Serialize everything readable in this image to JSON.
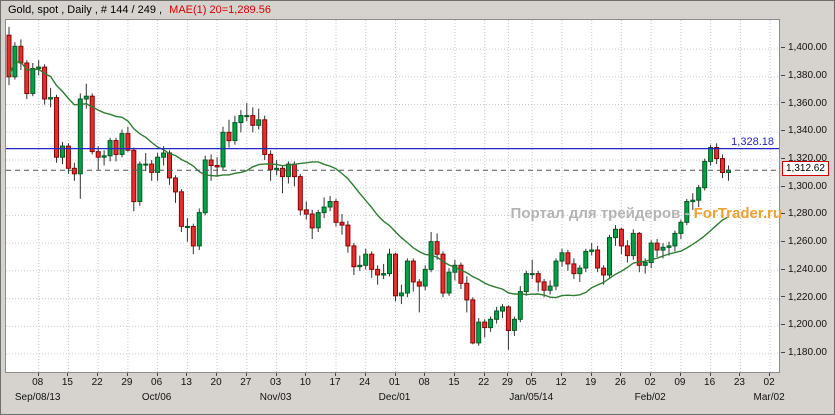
{
  "window": {
    "title_main": "Gold, spot , Daily , # 144 / 249 ,",
    "title_indicator": "MAE(1) 20=1,289.56"
  },
  "watermark": {
    "text_gray": "Портал для трейдеров",
    "separator": " - ",
    "text_orange": "ForTrader.ru"
  },
  "colors": {
    "up": "#00a14b",
    "down": "#e03030",
    "ma": "#2e7d32",
    "blue_line": "#2626c4",
    "grid": "#c9c9c9",
    "title_indicator": "#d40000",
    "watermark_gray": "#b4b4b4",
    "watermark_orange": "#f0a030"
  },
  "chart_data": {
    "type": "candlestick",
    "instrument": "Gold, spot",
    "timeframe": "Daily",
    "bars_shown": "144 / 249",
    "indicator": {
      "name": "MAE",
      "applied": 1,
      "period": 20,
      "value": 1289.56,
      "label": "MAE(1) 20=1,289.56"
    },
    "legend_position": "top-left",
    "grid": true,
    "price_min": 1167,
    "price_max": 1421,
    "ma_period": 20,
    "total_slots": 130,
    "blue_line": {
      "value": 1328.18,
      "label": "1,328.18"
    },
    "dashed_line": {
      "value": 1312.62,
      "label": "1,312.62"
    },
    "y_ticks": [
      {
        "value": 1400,
        "label": "1,400.00"
      },
      {
        "value": 1380,
        "label": "1,380.00"
      },
      {
        "value": 1360,
        "label": "1,360.00"
      },
      {
        "value": 1340,
        "label": "1,340.00"
      },
      {
        "value": 1320,
        "label": "1,320.00"
      },
      {
        "value": 1300,
        "label": "1,300.00"
      },
      {
        "value": 1280,
        "label": "1,280.00"
      },
      {
        "value": 1260,
        "label": "1,260.00"
      },
      {
        "value": 1240,
        "label": "1,240.00"
      },
      {
        "value": 1220,
        "label": "1,220.00"
      },
      {
        "value": 1200,
        "label": "1,200.00"
      },
      {
        "value": 1180,
        "label": "1,180.00"
      }
    ],
    "x_ticks": [
      {
        "slot": 5,
        "label": "08"
      },
      {
        "slot": 10,
        "label": "15"
      },
      {
        "slot": 15,
        "label": "22"
      },
      {
        "slot": 20,
        "label": "29"
      },
      {
        "slot": 25,
        "label": "06"
      },
      {
        "slot": 30,
        "label": "13"
      },
      {
        "slot": 35,
        "label": "20"
      },
      {
        "slot": 40,
        "label": "27"
      },
      {
        "slot": 45,
        "label": "03"
      },
      {
        "slot": 50,
        "label": "10"
      },
      {
        "slot": 55,
        "label": "17"
      },
      {
        "slot": 60,
        "label": "24"
      },
      {
        "slot": 65,
        "label": "01"
      },
      {
        "slot": 70,
        "label": "08"
      },
      {
        "slot": 75,
        "label": "15"
      },
      {
        "slot": 80,
        "label": "22"
      },
      {
        "slot": 84,
        "label": "29"
      },
      {
        "slot": 88,
        "label": "05"
      },
      {
        "slot": 93,
        "label": "12"
      },
      {
        "slot": 98,
        "label": "19"
      },
      {
        "slot": 103,
        "label": "26"
      },
      {
        "slot": 108,
        "label": "02"
      },
      {
        "slot": 113,
        "label": "09"
      },
      {
        "slot": 118,
        "label": "16"
      },
      {
        "slot": 123,
        "label": "23"
      },
      {
        "slot": 128,
        "label": "02"
      }
    ],
    "month_ticks": [
      {
        "slot": 5,
        "label": "Sep/08/13"
      },
      {
        "slot": 25,
        "label": "Oct/06"
      },
      {
        "slot": 45,
        "label": "Nov/03"
      },
      {
        "slot": 65,
        "label": "Dec/01"
      },
      {
        "slot": 88,
        "label": "Jan/05/14"
      },
      {
        "slot": 108,
        "label": "Feb/02"
      },
      {
        "slot": 128,
        "label": "Mar/02"
      }
    ],
    "candles": [
      [
        1410,
        1416,
        1374,
        1380
      ],
      [
        1380,
        1405,
        1378,
        1402
      ],
      [
        1402,
        1407,
        1385,
        1390
      ],
      [
        1390,
        1392,
        1364,
        1368
      ],
      [
        1368,
        1390,
        1366,
        1386
      ],
      [
        1386,
        1392,
        1381,
        1387
      ],
      [
        1387,
        1389,
        1360,
        1364
      ],
      [
        1364,
        1372,
        1358,
        1365
      ],
      [
        1365,
        1367,
        1318,
        1322
      ],
      [
        1322,
        1333,
        1317,
        1330
      ],
      [
        1330,
        1332,
        1310,
        1314
      ],
      [
        1314,
        1318,
        1305,
        1310
      ],
      [
        1310,
        1368,
        1292,
        1364
      ],
      [
        1364,
        1375,
        1357,
        1366
      ],
      [
        1366,
        1368,
        1324,
        1326
      ],
      [
        1326,
        1330,
        1313,
        1322
      ],
      [
        1322,
        1327,
        1316,
        1323
      ],
      [
        1323,
        1336,
        1319,
        1334
      ],
      [
        1334,
        1336,
        1319,
        1324
      ],
      [
        1324,
        1342,
        1322,
        1339
      ],
      [
        1339,
        1344,
        1326,
        1327
      ],
      [
        1327,
        1329,
        1283,
        1290
      ],
      [
        1290,
        1319,
        1287,
        1317
      ],
      [
        1317,
        1325,
        1312,
        1317
      ],
      [
        1317,
        1320,
        1305,
        1311
      ],
      [
        1311,
        1325,
        1305,
        1322
      ],
      [
        1322,
        1330,
        1316,
        1325
      ],
      [
        1325,
        1327,
        1302,
        1307
      ],
      [
        1307,
        1309,
        1289,
        1297
      ],
      [
        1297,
        1299,
        1268,
        1272
      ],
      [
        1272,
        1278,
        1261,
        1272
      ],
      [
        1272,
        1274,
        1252,
        1258
      ],
      [
        1258,
        1285,
        1255,
        1282
      ],
      [
        1282,
        1323,
        1280,
        1320
      ],
      [
        1320,
        1324,
        1305,
        1316
      ],
      [
        1316,
        1322,
        1308,
        1315
      ],
      [
        1315,
        1344,
        1313,
        1340
      ],
      [
        1340,
        1349,
        1329,
        1334
      ],
      [
        1334,
        1352,
        1331,
        1347
      ],
      [
        1347,
        1356,
        1340,
        1352
      ],
      [
        1352,
        1361,
        1348,
        1352
      ],
      [
        1352,
        1358,
        1340,
        1345
      ],
      [
        1345,
        1357,
        1342,
        1349
      ],
      [
        1349,
        1352,
        1320,
        1324
      ],
      [
        1324,
        1327,
        1305,
        1313
      ],
      [
        1313,
        1320,
        1309,
        1314
      ],
      [
        1314,
        1316,
        1296,
        1308
      ],
      [
        1308,
        1319,
        1303,
        1317
      ],
      [
        1317,
        1319,
        1301,
        1308
      ],
      [
        1308,
        1310,
        1280,
        1284
      ],
      [
        1284,
        1290,
        1277,
        1281
      ],
      [
        1281,
        1284,
        1263,
        1271
      ],
      [
        1271,
        1284,
        1268,
        1282
      ],
      [
        1282,
        1293,
        1278,
        1286
      ],
      [
        1286,
        1294,
        1283,
        1290
      ],
      [
        1290,
        1292,
        1272,
        1275
      ],
      [
        1275,
        1281,
        1266,
        1273
      ],
      [
        1273,
        1276,
        1253,
        1258
      ],
      [
        1258,
        1260,
        1237,
        1243
      ],
      [
        1243,
        1251,
        1240,
        1244
      ],
      [
        1244,
        1256,
        1241,
        1252
      ],
      [
        1252,
        1254,
        1235,
        1241
      ],
      [
        1241,
        1244,
        1230,
        1237
      ],
      [
        1237,
        1245,
        1234,
        1238
      ],
      [
        1238,
        1256,
        1236,
        1252
      ],
      [
        1252,
        1253,
        1218,
        1222
      ],
      [
        1222,
        1230,
        1216,
        1224
      ],
      [
        1224,
        1249,
        1221,
        1247
      ],
      [
        1247,
        1249,
        1225,
        1232
      ],
      [
        1232,
        1234,
        1210,
        1229
      ],
      [
        1229,
        1244,
        1226,
        1241
      ],
      [
        1241,
        1268,
        1239,
        1261
      ],
      [
        1261,
        1267,
        1248,
        1252
      ],
      [
        1252,
        1254,
        1221,
        1224
      ],
      [
        1224,
        1242,
        1222,
        1239
      ],
      [
        1239,
        1248,
        1233,
        1244
      ],
      [
        1244,
        1246,
        1227,
        1231
      ],
      [
        1231,
        1236,
        1210,
        1219
      ],
      [
        1219,
        1221,
        1187,
        1188
      ],
      [
        1188,
        1206,
        1186,
        1203
      ],
      [
        1203,
        1205,
        1192,
        1199
      ],
      [
        1199,
        1207,
        1196,
        1205
      ],
      [
        1205,
        1214,
        1202,
        1211
      ],
      [
        1211,
        1216,
        1206,
        1214
      ],
      [
        1214,
        1215,
        1183,
        1197
      ],
      [
        1197,
        1207,
        1193,
        1205
      ],
      [
        1205,
        1229,
        1203,
        1225
      ],
      [
        1225,
        1240,
        1222,
        1238
      ],
      [
        1238,
        1248,
        1234,
        1238
      ],
      [
        1238,
        1240,
        1225,
        1232
      ],
      [
        1232,
        1234,
        1221,
        1226
      ],
      [
        1226,
        1233,
        1223,
        1229
      ],
      [
        1229,
        1249,
        1226,
        1247
      ],
      [
        1247,
        1256,
        1243,
        1253
      ],
      [
        1253,
        1255,
        1240,
        1245
      ],
      [
        1245,
        1249,
        1234,
        1238
      ],
      [
        1238,
        1244,
        1232,
        1242
      ],
      [
        1242,
        1256,
        1239,
        1254
      ],
      [
        1254,
        1260,
        1251,
        1255
      ],
      [
        1255,
        1258,
        1239,
        1242
      ],
      [
        1242,
        1244,
        1230,
        1237
      ],
      [
        1237,
        1266,
        1235,
        1264
      ],
      [
        1264,
        1273,
        1258,
        1270
      ],
      [
        1270,
        1271,
        1252,
        1258
      ],
      [
        1258,
        1262,
        1246,
        1251
      ],
      [
        1251,
        1270,
        1248,
        1267
      ],
      [
        1267,
        1268,
        1239,
        1244
      ],
      [
        1244,
        1249,
        1238,
        1246
      ],
      [
        1246,
        1262,
        1242,
        1260
      ],
      [
        1260,
        1263,
        1250,
        1255
      ],
      [
        1255,
        1260,
        1249,
        1257
      ],
      [
        1257,
        1261,
        1251,
        1258
      ],
      [
        1258,
        1269,
        1254,
        1267
      ],
      [
        1267,
        1277,
        1263,
        1275
      ],
      [
        1275,
        1292,
        1273,
        1290
      ],
      [
        1290,
        1296,
        1284,
        1291
      ],
      [
        1291,
        1302,
        1286,
        1300
      ],
      [
        1300,
        1321,
        1298,
        1319
      ],
      [
        1319,
        1331,
        1316,
        1329
      ],
      [
        1329,
        1332,
        1317,
        1321
      ],
      [
        1321,
        1324,
        1307,
        1311
      ],
      [
        1311,
        1316,
        1305,
        1312.62
      ]
    ]
  }
}
